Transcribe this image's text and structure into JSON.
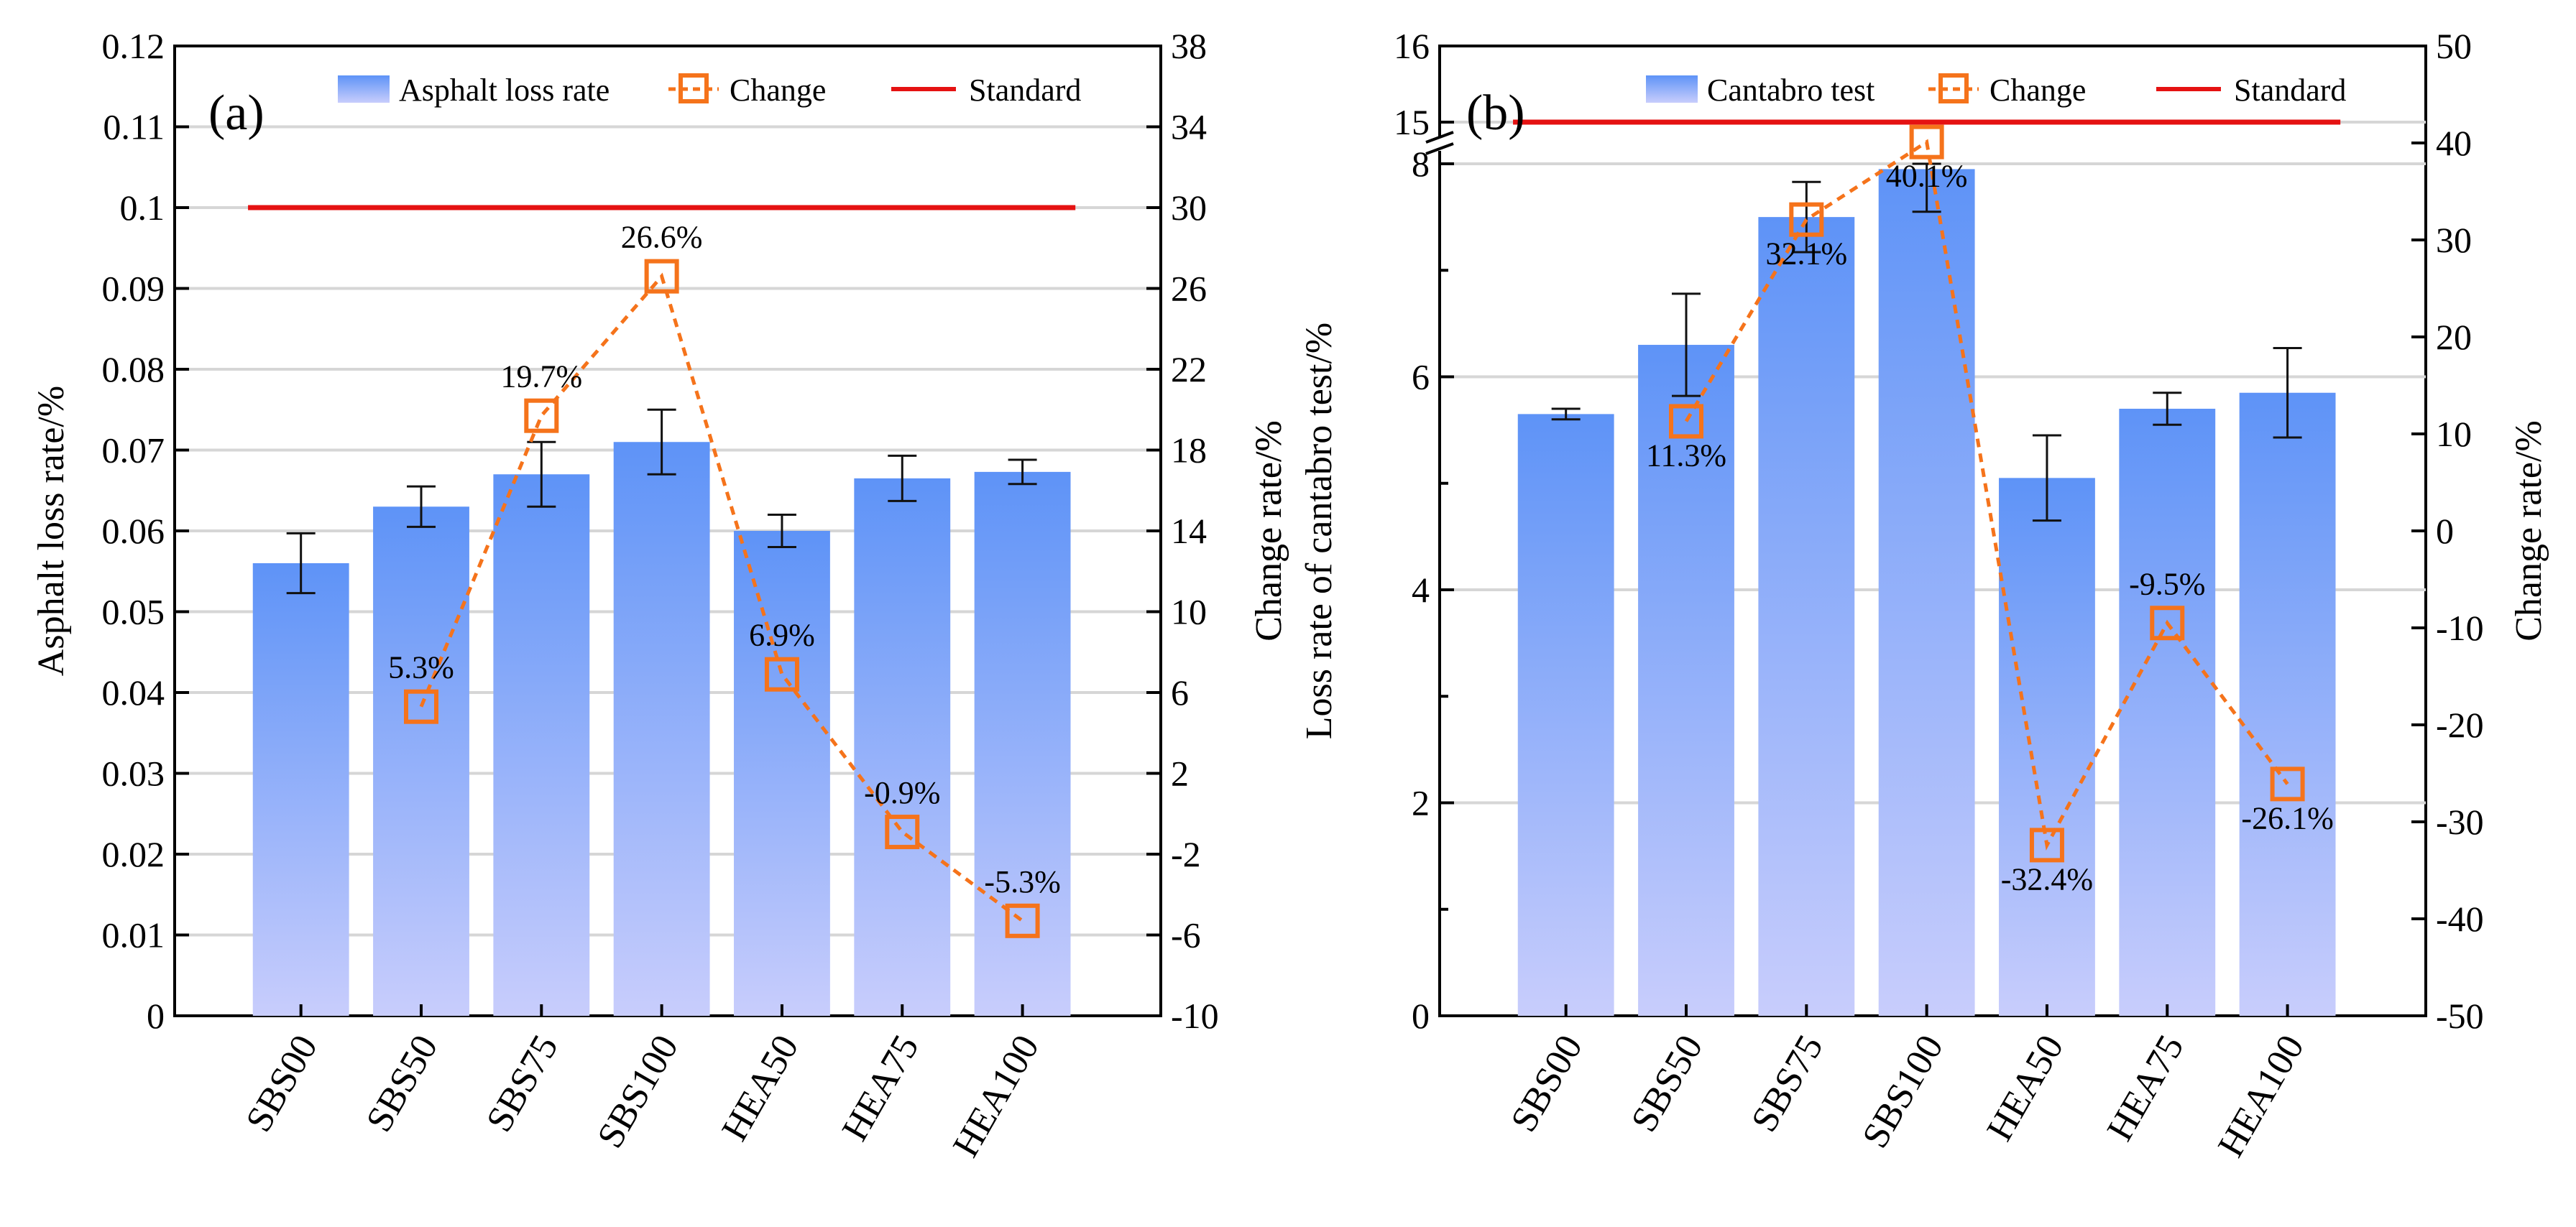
{
  "chart_data": [
    {
      "type": "bar",
      "panel_label": "(a)",
      "categories": [
        "SBS00",
        "SBS50",
        "SBS75",
        "SBS100",
        "HEA50",
        "HEA75",
        "HEA100"
      ],
      "ylabel": "Asphalt loss rate/%",
      "y2label": "Change rate/%",
      "ylim": [
        0,
        0.12
      ],
      "y2lim": [
        -10,
        38
      ],
      "yticks": [
        "0",
        "0.01",
        "0.02",
        "0.03",
        "0.04",
        "0.05",
        "0.06",
        "0.07",
        "0.08",
        "0.09",
        "0.1",
        "0.11",
        "0.12"
      ],
      "y2ticks": [
        "-10",
        "-6",
        "-2",
        "2",
        "6",
        "10",
        "14",
        "18",
        "22",
        "26",
        "30",
        "34",
        "38"
      ],
      "grid": true,
      "legend": {
        "position": "top-right",
        "entries": [
          "Asphalt loss rate",
          "Change",
          "Standard"
        ]
      },
      "series": [
        {
          "name": "Asphalt loss rate",
          "kind": "bar",
          "axis": "left",
          "values": [
            0.056,
            0.063,
            0.067,
            0.071,
            0.06,
            0.0665,
            0.0673
          ],
          "errors": [
            0.0037,
            0.0025,
            0.004,
            0.004,
            0.002,
            0.0028,
            0.0015
          ]
        },
        {
          "name": "Change",
          "kind": "line",
          "axis": "right",
          "values": [
            null,
            5.3,
            19.7,
            26.6,
            6.9,
            -0.9,
            -5.3
          ],
          "labels": [
            "",
            "5.3%",
            "19.7%",
            "26.6%",
            "6.9%",
            "-0.9%",
            "-5.3%"
          ]
        },
        {
          "name": "Standard",
          "kind": "hline",
          "axis": "left",
          "value": 0.1
        }
      ]
    },
    {
      "type": "bar",
      "panel_label": "(b)",
      "categories": [
        "SBS00",
        "SBS50",
        "SBS75",
        "SBS100",
        "HEA50",
        "HEA75",
        "HEA100"
      ],
      "ylabel": "Loss rate of cantabro test/%",
      "y2label": "Change rate/%",
      "ylim": [
        0,
        16
      ],
      "axis_break": [
        8,
        15
      ],
      "y2lim": [
        -50,
        50
      ],
      "yticks": [
        "0",
        "2",
        "4",
        "6",
        "8",
        "15",
        "16"
      ],
      "y2ticks": [
        "-50",
        "-40",
        "-30",
        "-20",
        "-10",
        "0",
        "10",
        "20",
        "30",
        "40",
        "50"
      ],
      "grid": true,
      "legend": {
        "position": "top-right",
        "entries": [
          "Cantabro test",
          "Change",
          "Standard"
        ]
      },
      "series": [
        {
          "name": "Cantabro test",
          "kind": "bar",
          "axis": "left",
          "values": [
            5.65,
            6.3,
            7.5,
            7.95,
            5.05,
            5.7,
            5.85
          ],
          "errors": [
            0.05,
            0.48,
            0.33,
            0.4,
            0.4,
            0.15,
            0.42
          ]
        },
        {
          "name": "Change",
          "kind": "line",
          "axis": "right",
          "values": [
            null,
            11.3,
            32.1,
            40.1,
            -32.4,
            -9.5,
            -26.1
          ],
          "labels": [
            "",
            "11.3%",
            "32.1%",
            "40.1%",
            "-32.4%",
            "-9.5%",
            "-26.1%"
          ]
        },
        {
          "name": "Standard",
          "kind": "hline",
          "axis": "left",
          "value": 15
        }
      ]
    }
  ]
}
